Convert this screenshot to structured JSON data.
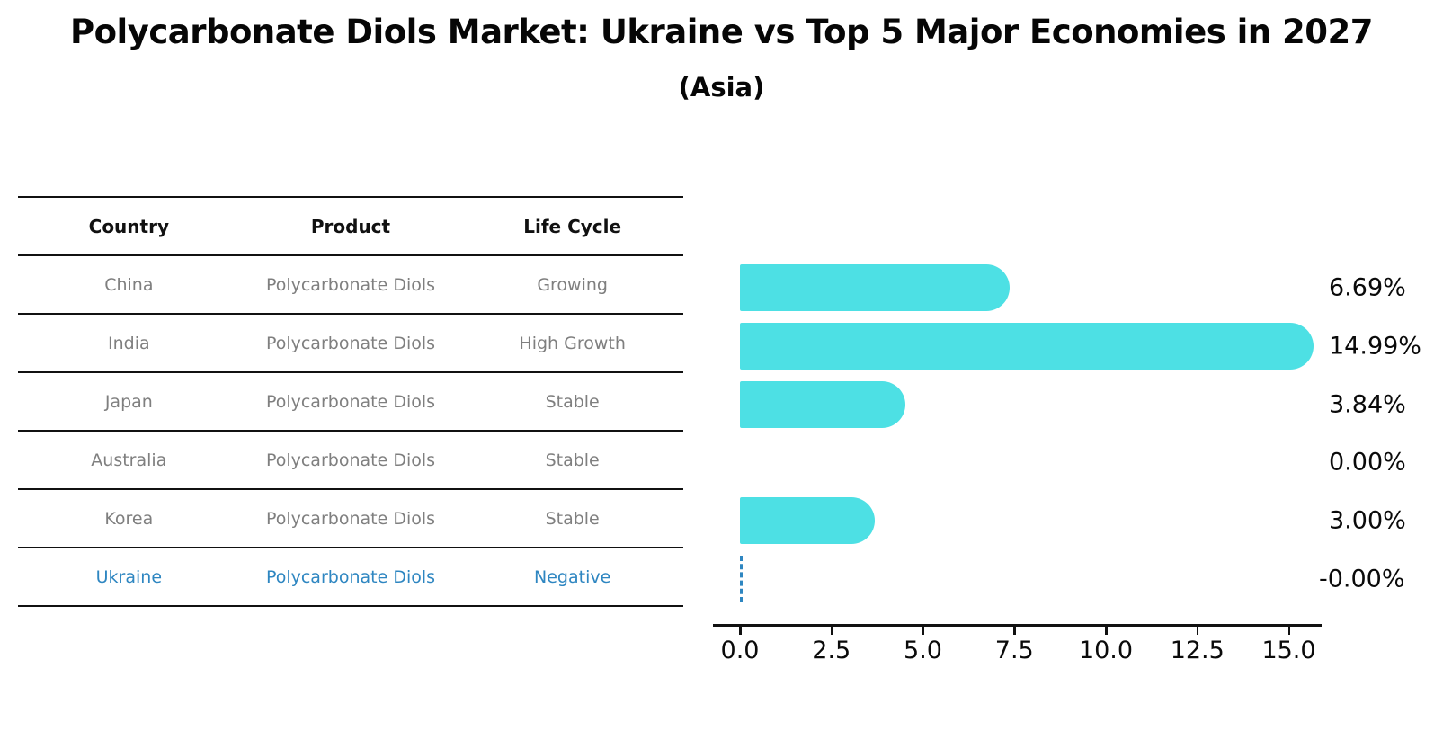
{
  "title": "Polycarbonate Diols Market: Ukraine vs Top 5 Major Economies in 2027",
  "subtitle": "(Asia)",
  "table": {
    "headers": [
      "Country",
      "Product",
      "Life Cycle"
    ],
    "rows": [
      [
        "China",
        "Polycarbonate Diols",
        "Growing"
      ],
      [
        "India",
        "Polycarbonate Diols",
        "High Growth"
      ],
      [
        "Japan",
        "Polycarbonate Diols",
        "Stable"
      ],
      [
        "Australia",
        "Polycarbonate Diols",
        "Stable"
      ],
      [
        "Korea",
        "Polycarbonate Diols",
        "Stable"
      ],
      [
        "Ukraine",
        "Polycarbonate Diols",
        "Negative"
      ]
    ],
    "highlight_row": 5
  },
  "chart_data": {
    "type": "bar",
    "orientation": "horizontal",
    "title": "Polycarbonate Diols Market: Ukraine vs Top 5 Major Economies in 2027",
    "subtitle": "(Asia)",
    "categories": [
      "China",
      "India",
      "Japan",
      "Australia",
      "Korea",
      "Ukraine"
    ],
    "values": [
      6.69,
      14.99,
      3.84,
      0.0,
      3.0,
      -0.0
    ],
    "value_labels": [
      "6.69%",
      "14.99%",
      "3.84%",
      "0.00%",
      "3.00%",
      "-0.00%"
    ],
    "x_tick_values": [
      0,
      2.5,
      5,
      7.5,
      10,
      12.5,
      15
    ],
    "x_tick_labels": [
      "0.0",
      "2.5",
      "5.0",
      "7.5",
      "10.0",
      "12.5",
      "15.0"
    ],
    "xlim": [
      0,
      15.9
    ],
    "xlabel": "",
    "ylabel": "",
    "grid": false,
    "legend": false,
    "bar_color": "#4de0e4",
    "highlight_color": "#2e86c1",
    "highlight_index": 5
  },
  "colors": {
    "bar": "#4de0e4",
    "highlight_blue": "#2e86c1",
    "table_text_gray": "#7f7f7f",
    "text_black": "#0a0a0a"
  }
}
